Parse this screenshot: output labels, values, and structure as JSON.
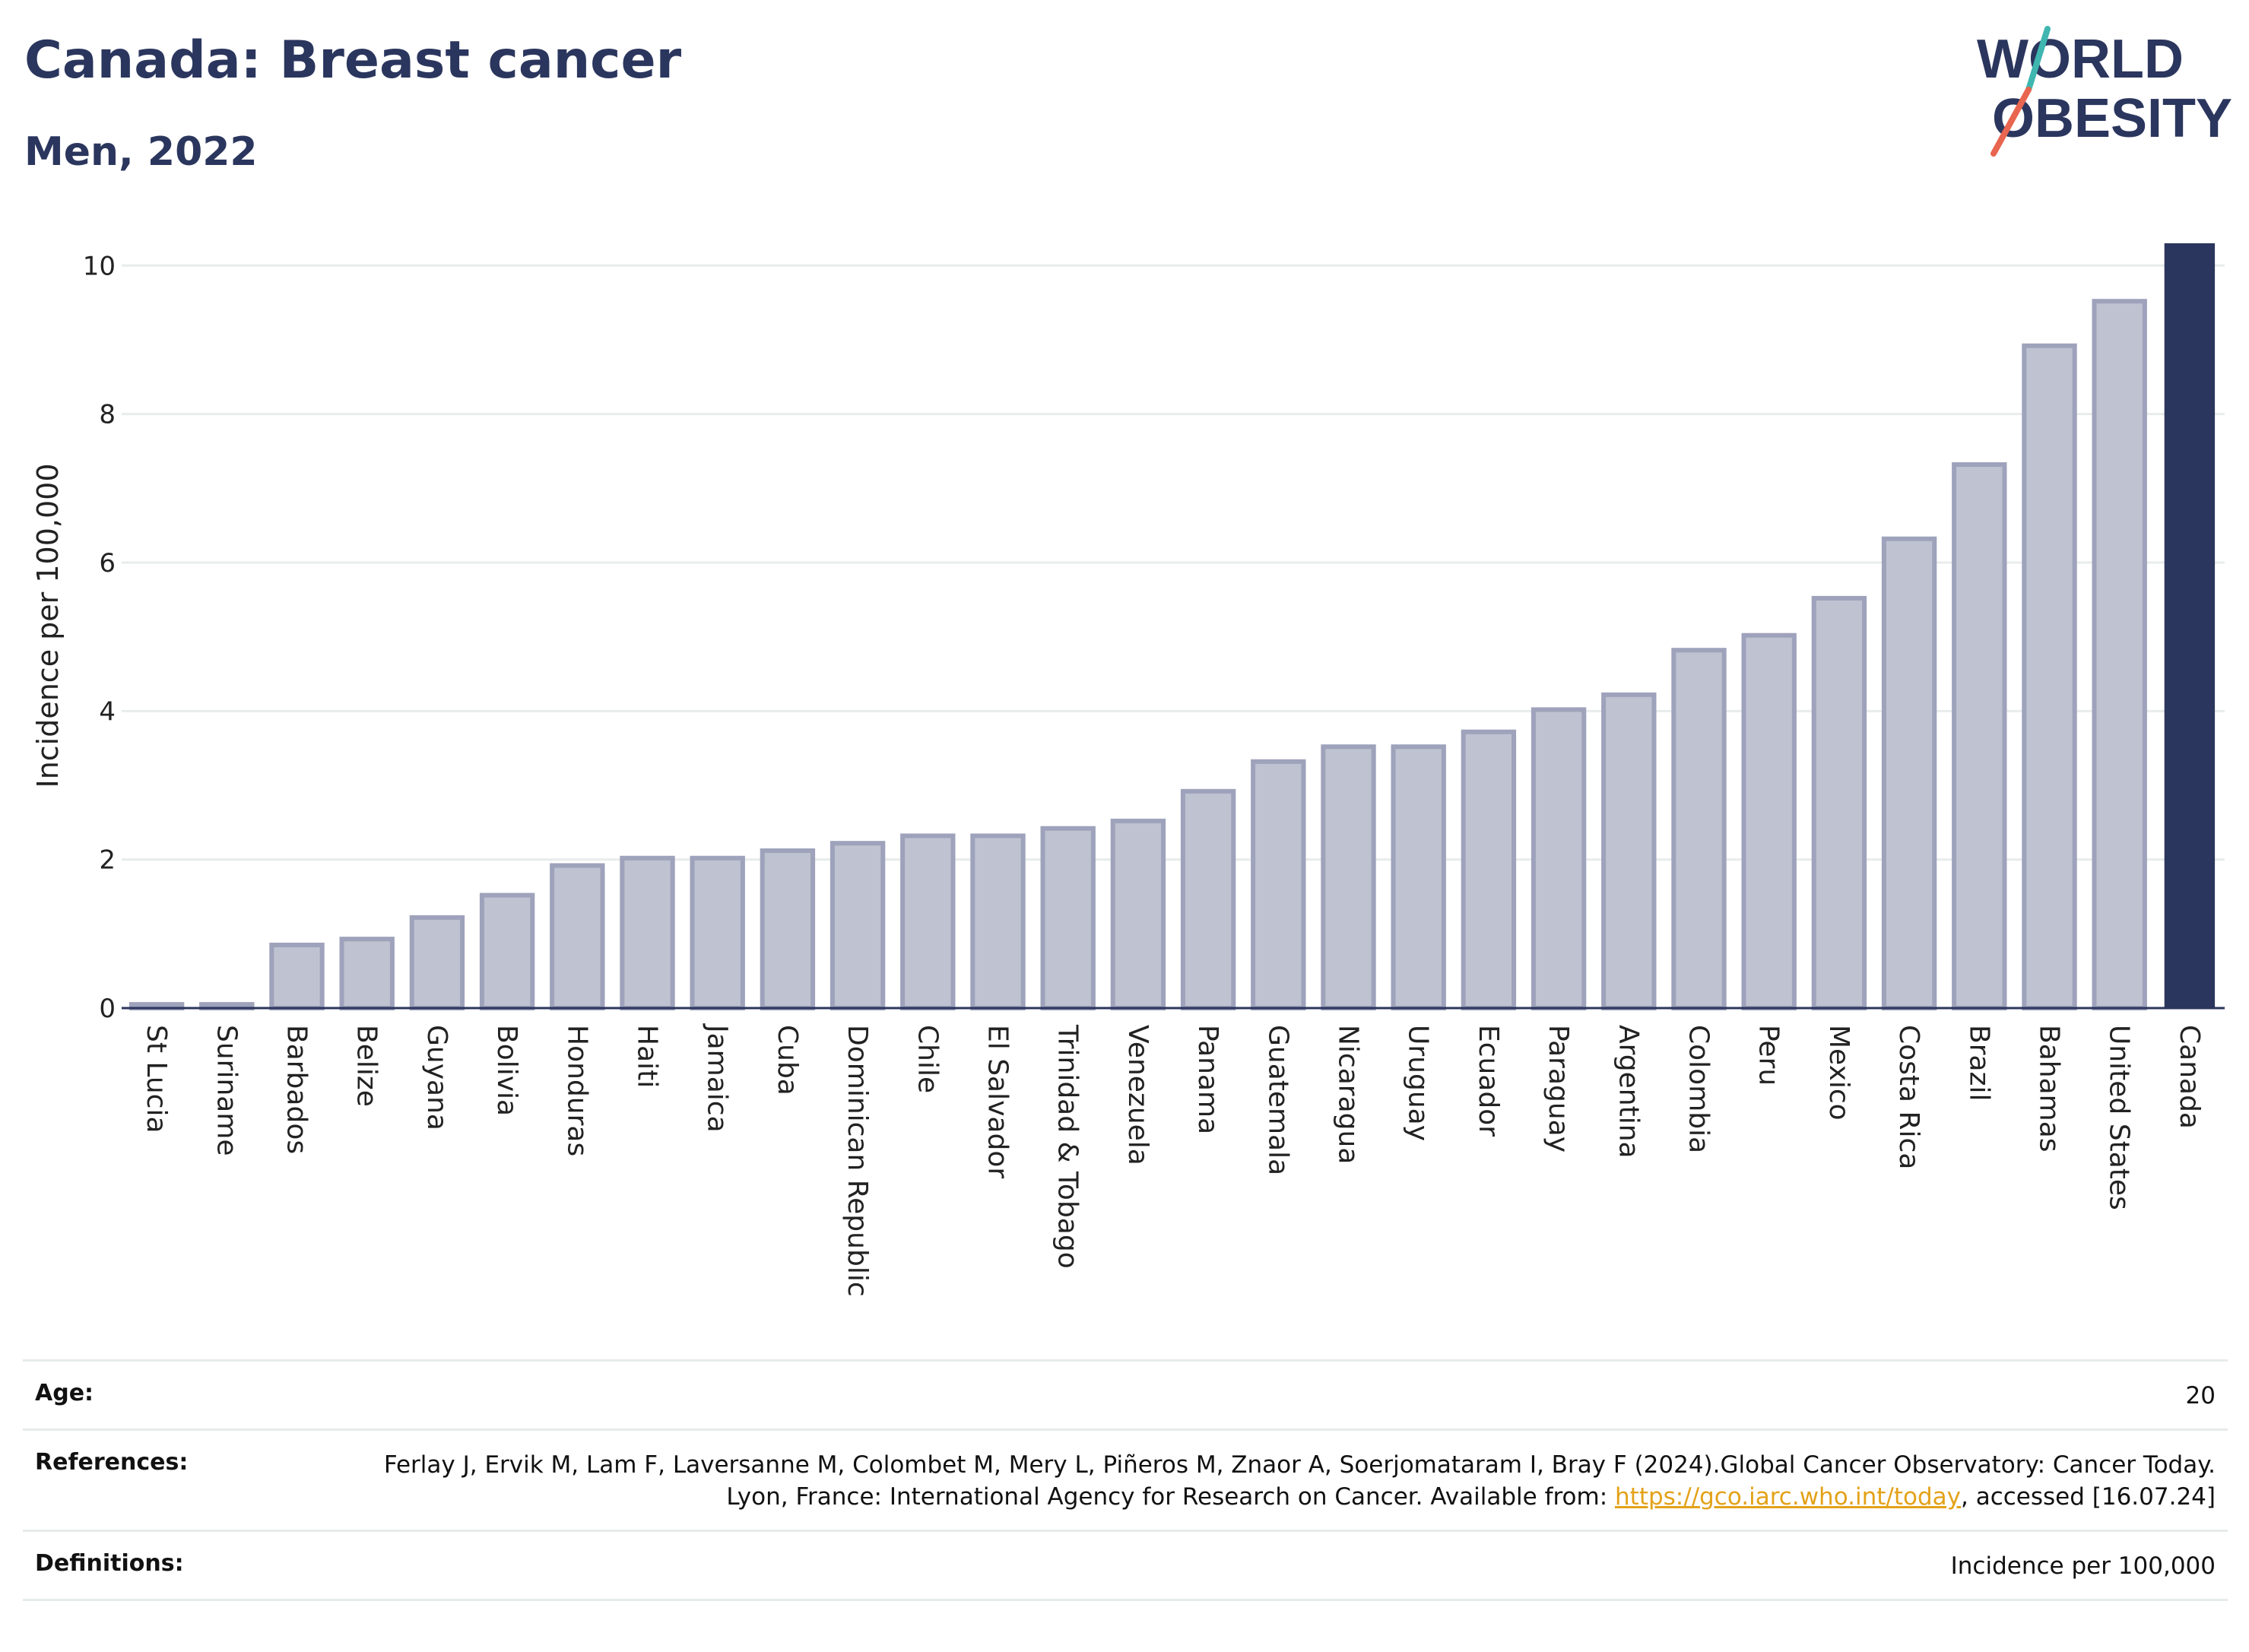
{
  "header": {
    "title": "Canada: Breast cancer",
    "subtitle": "Men, 2022"
  },
  "logo": {
    "line1": "WORLD",
    "line2": "OBESITY",
    "text_color": "#2b365e",
    "slash_colors": [
      "#3fb6b0",
      "#e8654f"
    ]
  },
  "chart_data": {
    "type": "bar",
    "title": "",
    "xlabel": "",
    "ylabel": "Incidence per 100,000",
    "ylim": [
      0,
      10.3
    ],
    "yticks": [
      0,
      2,
      4,
      6,
      8,
      10
    ],
    "grid": true,
    "legend": "none",
    "categories": [
      "St Lucia",
      "Suriname",
      "Barbados",
      "Belize",
      "Guyana",
      "Bolivia",
      "Honduras",
      "Haiti",
      "Jamaica",
      "Cuba",
      "Dominican Republic",
      "Chile",
      "El Salvador",
      "Trinidad & Tobago",
      "Venezuela",
      "Panama",
      "Guatemala",
      "Nicaragua",
      "Uruguay",
      "Ecuador",
      "Paraguay",
      "Argentina",
      "Colombia",
      "Peru",
      "Mexico",
      "Costa Rica",
      "Brazil",
      "Bahamas",
      "United States",
      "Canada"
    ],
    "values": [
      0.05,
      0.05,
      0.85,
      0.93,
      1.22,
      1.52,
      1.92,
      2.02,
      2.02,
      2.12,
      2.22,
      2.32,
      2.32,
      2.42,
      2.52,
      2.92,
      3.32,
      3.52,
      3.52,
      3.72,
      4.02,
      4.22,
      4.82,
      5.02,
      5.52,
      6.32,
      7.32,
      8.92,
      9.52,
      10.3
    ],
    "highlight": "Canada",
    "colors": {
      "bar_fill": "#bfc2d0",
      "bar_stroke": "#9ea2bb",
      "highlight_fill": "#2b365e",
      "grid": "#e8ecec",
      "axis": "#2b365e"
    }
  },
  "meta": {
    "age_label": "Age:",
    "age_value": "20",
    "references_label": "References:",
    "references_text_1": "Ferlay J, Ervik M, Lam F, Laversanne M, Colombet M, Mery L, Piñeros M, Znaor A, Soerjomataram I, Bray F (2024).Global Cancer Observatory: Cancer Today. Lyon, France: International Agency for Research on Cancer. Available from: ",
    "references_link": "https://gco.iarc.who.int/today",
    "references_text_2": ", accessed [16.07.24]",
    "definitions_label": "Definitions:",
    "definitions_value": "Incidence per 100,000"
  }
}
